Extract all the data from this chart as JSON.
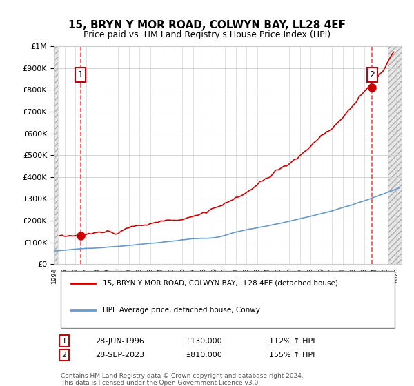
{
  "title": "15, BRYN Y MOR ROAD, COLWYN BAY, LL28 4EF",
  "subtitle": "Price paid vs. HM Land Registry's House Price Index (HPI)",
  "sale1_date": "28-JUN-1996",
  "sale1_price": 130000,
  "sale1_hpi": "112% ↑ HPI",
  "sale2_date": "28-SEP-2023",
  "sale2_price": 810000,
  "sale2_hpi": "155% ↑ HPI",
  "legend_line1": "15, BRYN Y MOR ROAD, COLWYN BAY, LL28 4EF (detached house)",
  "legend_line2": "HPI: Average price, detached house, Conwy",
  "footer": "Contains HM Land Registry data © Crown copyright and database right 2024.\nThis data is licensed under the Open Government Licence v3.0.",
  "hpi_color": "#6699cc",
  "price_color": "#cc0000",
  "sale_marker_color": "#cc0000",
  "vline_color": "#ff4444",
  "annotation_border_color": "#cc0000",
  "bg_hatch_color": "#e8e8e8",
  "ylim_max": 1000000,
  "ylim_min": 0,
  "xlim_min": 1994.0,
  "xlim_max": 2026.5
}
